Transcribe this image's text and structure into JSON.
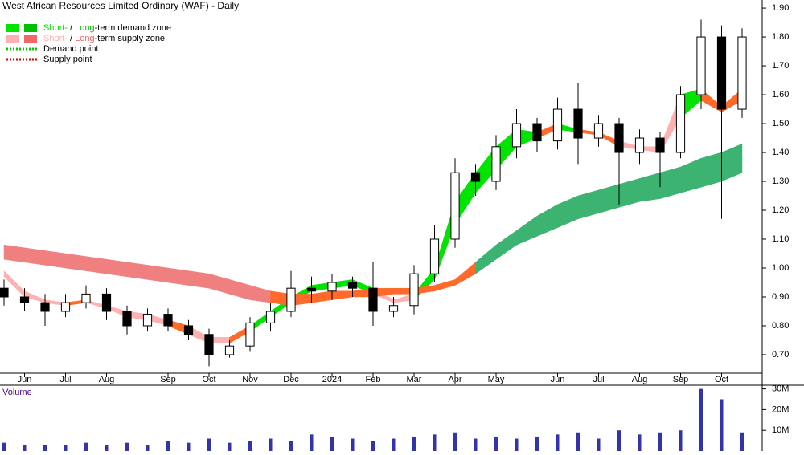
{
  "chart_data": {
    "type": "candlestick",
    "title": "West African Resources Limited Ordinary (WAF) - Daily",
    "legend": [
      {
        "parts": [
          "Short-",
          " / ",
          "Long",
          "-term demand zone"
        ],
        "colors": [
          "#00e400",
          "#00c000"
        ]
      },
      {
        "parts": [
          "Short-",
          " / ",
          "Long",
          "-term supply zone"
        ],
        "colors": [
          "#ffb0b0",
          "#f06868"
        ]
      },
      {
        "parts": [
          "Demand point"
        ],
        "colors": [
          "#00cc00"
        ]
      },
      {
        "parts": [
          "Supply point"
        ],
        "colors": [
          "#dd0000"
        ]
      }
    ],
    "categories": [
      null,
      "Jun",
      null,
      "Jul",
      null,
      "Aug",
      null,
      null,
      "Sep",
      null,
      "Oct",
      null,
      "Nov",
      null,
      "Dec",
      null,
      "2024",
      null,
      "Feb",
      null,
      "Mar",
      null,
      "Apr",
      null,
      "May",
      null,
      null,
      "Jun",
      null,
      "Jul",
      null,
      "Aug",
      null,
      "Sep",
      null,
      "Oct",
      null
    ],
    "open": [
      0.93,
      0.9,
      0.88,
      0.85,
      0.88,
      0.91,
      0.85,
      0.8,
      0.84,
      0.8,
      0.77,
      0.7,
      0.73,
      0.81,
      0.85,
      0.93,
      0.92,
      0.95,
      0.93,
      0.85,
      0.87,
      0.98,
      1.1,
      1.33,
      1.3,
      1.42,
      1.5,
      1.44,
      1.55,
      1.45,
      1.5,
      1.4,
      1.45,
      1.4,
      1.6,
      1.8,
      1.55
    ],
    "high": [
      0.96,
      0.93,
      0.91,
      0.91,
      0.94,
      0.93,
      0.87,
      0.86,
      0.86,
      0.82,
      0.79,
      0.75,
      0.83,
      0.88,
      0.99,
      0.97,
      0.98,
      0.97,
      1.02,
      0.9,
      1.01,
      1.15,
      1.38,
      1.36,
      1.46,
      1.55,
      1.52,
      1.59,
      1.64,
      1.53,
      1.52,
      1.48,
      1.47,
      1.63,
      1.86,
      1.84,
      1.83
    ],
    "low": [
      0.87,
      0.85,
      0.8,
      0.83,
      0.86,
      0.82,
      0.77,
      0.78,
      0.78,
      0.75,
      0.66,
      0.69,
      0.71,
      0.78,
      0.83,
      0.88,
      0.89,
      0.9,
      0.8,
      0.83,
      0.84,
      0.95,
      1.07,
      1.25,
      1.27,
      1.38,
      1.4,
      1.41,
      1.36,
      1.42,
      1.22,
      1.36,
      1.28,
      1.38,
      1.55,
      1.17,
      1.52
    ],
    "close": [
      0.9,
      0.88,
      0.85,
      0.88,
      0.91,
      0.85,
      0.8,
      0.84,
      0.8,
      0.77,
      0.7,
      0.73,
      0.81,
      0.85,
      0.93,
      0.92,
      0.95,
      0.93,
      0.85,
      0.87,
      0.98,
      1.1,
      1.33,
      1.3,
      1.42,
      1.5,
      1.44,
      1.55,
      1.45,
      1.5,
      1.4,
      1.45,
      1.4,
      1.6,
      1.8,
      1.55,
      1.8
    ],
    "zones": [
      {
        "lower": [
          0.97,
          0.9,
          0.88,
          0.87,
          0.88,
          0.86,
          0.83,
          0.82,
          0.8,
          0.77,
          0.74,
          0.74,
          0.78,
          0.83,
          0.88,
          0.92,
          0.93,
          0.94,
          0.91,
          0.88,
          0.89,
          0.96,
          1.15,
          1.26,
          1.34,
          1.42,
          1.45,
          1.48,
          1.47,
          1.46,
          1.42,
          1.41,
          1.4,
          1.52,
          1.58,
          1.54,
          1.58
        ],
        "upper": [
          0.99,
          0.92,
          0.89,
          0.88,
          0.89,
          0.87,
          0.85,
          0.84,
          0.82,
          0.8,
          0.76,
          0.76,
          0.8,
          0.85,
          0.9,
          0.94,
          0.95,
          0.96,
          0.93,
          0.89,
          0.91,
          1.0,
          1.23,
          1.33,
          1.42,
          1.48,
          1.47,
          1.5,
          1.48,
          1.47,
          1.44,
          1.42,
          1.42,
          1.6,
          1.62,
          1.56,
          1.62
        ],
        "colors": [
          "#ffb0b0",
          "#ffb0b0",
          "#ffb0b0",
          "#ff6a2a",
          "#ffb0b0",
          "#ffb0b0",
          "#ffb0b0",
          "#ffb0b0",
          "#ff6a2a",
          "#ffb0b0",
          "#ffb0b0",
          "#ff6a2a",
          "#00e400",
          "#00e400",
          "#00e400",
          "#00e400",
          "#00e400",
          "#00e400",
          "#ffb0b0",
          "#ffb0b0",
          "#00e400",
          "#00e400",
          "#00e400",
          "#00e400",
          "#00e400",
          "#00e400",
          "#ff6a2a",
          "#00e400",
          "#ff6a2a",
          "#ff6a2a",
          "#ffb0b0",
          "#ffb0b0",
          "#ffb0b0",
          "#00e400",
          "#ff6a2a",
          "#ff6a2a",
          "#00e400"
        ]
      },
      {
        "lower": [
          1.03,
          1.02,
          1.01,
          1.0,
          0.99,
          0.98,
          0.97,
          0.96,
          0.95,
          0.94,
          0.93,
          0.91,
          0.89,
          0.88,
          0.87,
          0.88,
          0.89,
          0.9,
          0.9,
          0.91,
          0.91,
          0.92,
          0.94,
          0.98,
          1.03,
          1.08,
          1.11,
          1.14,
          1.17,
          1.19,
          1.21,
          1.23,
          1.24,
          1.26,
          1.28,
          1.3,
          1.33
        ],
        "upper": [
          1.08,
          1.07,
          1.06,
          1.05,
          1.04,
          1.03,
          1.02,
          1.01,
          1.0,
          0.99,
          0.98,
          0.96,
          0.94,
          0.92,
          0.91,
          0.91,
          0.92,
          0.92,
          0.93,
          0.93,
          0.93,
          0.94,
          0.96,
          1.02,
          1.08,
          1.13,
          1.18,
          1.22,
          1.25,
          1.27,
          1.29,
          1.31,
          1.33,
          1.35,
          1.38,
          1.4,
          1.43
        ],
        "colors": [
          "#f08080",
          "#f08080",
          "#f08080",
          "#f08080",
          "#f08080",
          "#f08080",
          "#f08080",
          "#f08080",
          "#f08080",
          "#f08080",
          "#f08080",
          "#f08080",
          "#f08080",
          "#ff6a2a",
          "#ff6a2a",
          "#ff6a2a",
          "#ff6a2a",
          "#ff6a2a",
          "#ff6a2a",
          "#ff6a2a",
          "#ff6a2a",
          "#ff6a2a",
          "#ff6a2a",
          "#3cb371",
          "#3cb371",
          "#3cb371",
          "#3cb371",
          "#3cb371",
          "#3cb371",
          "#3cb371",
          "#3cb371",
          "#3cb371",
          "#3cb371",
          "#3cb371",
          "#3cb371",
          "#3cb371",
          "#3cb371"
        ]
      }
    ],
    "ylim": [
      0.636,
      1.928
    ],
    "yticks": [
      {
        "value": 0.7,
        "label": "0.70"
      },
      {
        "value": 0.8,
        "label": "0.80"
      },
      {
        "value": 0.9,
        "label": "0.90"
      },
      {
        "value": 1.0,
        "label": "1.00"
      },
      {
        "value": 1.1,
        "label": "1.10"
      },
      {
        "value": 1.2,
        "label": "1.20"
      },
      {
        "value": 1.3,
        "label": "1.30"
      },
      {
        "value": 1.4,
        "label": "1.40"
      },
      {
        "value": 1.5,
        "label": "1.50"
      },
      {
        "value": 1.6,
        "label": "1.60"
      },
      {
        "value": 1.7,
        "label": "1.70"
      },
      {
        "value": 1.8,
        "label": "1.80"
      },
      {
        "value": 1.9,
        "label": "1.90"
      }
    ],
    "volume_title": "Volume",
    "volume": [
      4000000,
      3000000,
      3000000,
      3000000,
      4000000,
      3000000,
      4000000,
      3000000,
      5000000,
      4000000,
      6000000,
      4000000,
      5000000,
      6000000,
      5000000,
      8000000,
      7000000,
      6000000,
      5000000,
      6000000,
      7000000,
      8000000,
      9000000,
      6000000,
      7000000,
      6000000,
      7000000,
      8000000,
      9000000,
      6000000,
      10000000,
      8000000,
      9000000,
      10000000,
      30000000,
      25000000,
      9000000
    ],
    "volume_ylim": [
      0,
      31000000
    ],
    "volume_ticks": [
      {
        "value": 10000000,
        "label": "10M"
      },
      {
        "value": 20000000,
        "label": "20M"
      },
      {
        "value": 30000000,
        "label": "30M"
      }
    ]
  }
}
